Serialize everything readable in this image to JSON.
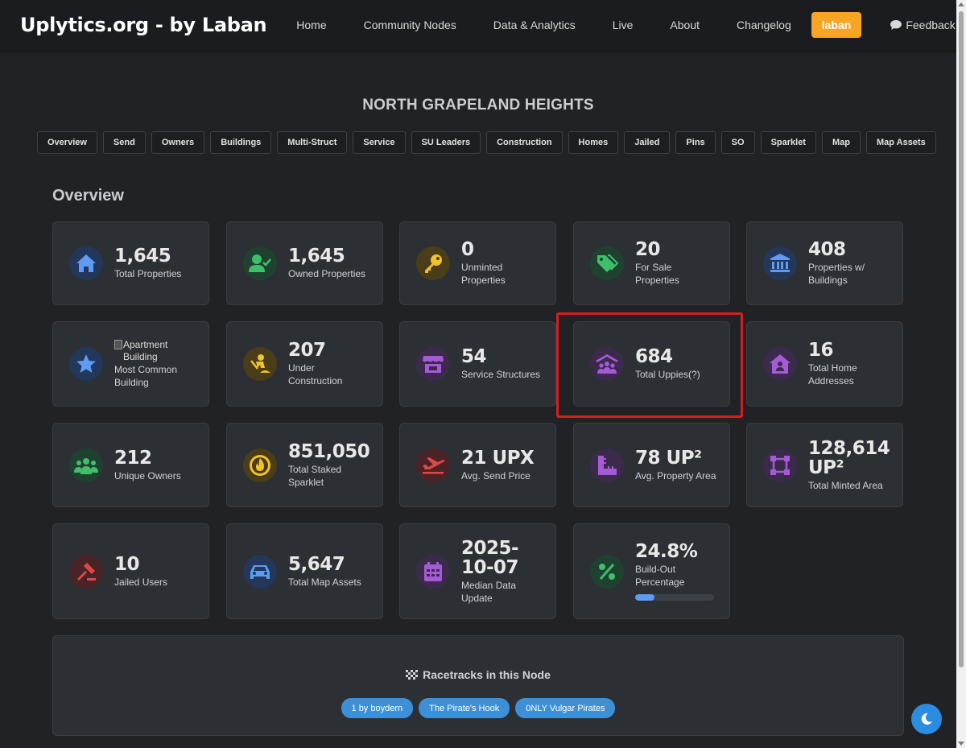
{
  "nav": {
    "brand": "Uplytics.org - by Laban",
    "links": [
      "Home",
      "Community Nodes",
      "Data & Analytics",
      "Live",
      "About",
      "Changelog"
    ],
    "user": "laban",
    "feedback": "Feedback"
  },
  "page": {
    "title": "NORTH GRAPELAND HEIGHTS",
    "tabs": [
      "Overview",
      "Send",
      "Owners",
      "Buildings",
      "Multi-Struct",
      "Service",
      "SU Leaders",
      "Construction",
      "Homes",
      "Jailed",
      "Pins",
      "SO",
      "Sparklet",
      "Map",
      "Map Assets"
    ]
  },
  "overview": {
    "title": "Overview",
    "cards": [
      {
        "value": "1,645",
        "label": "Total Properties",
        "icon": "house-icon"
      },
      {
        "value": "1,645",
        "label": "Owned Properties",
        "icon": "user-check-icon"
      },
      {
        "value": "0",
        "label": "Unminted Properties",
        "icon": "key-icon"
      },
      {
        "value": "20",
        "label": "For Sale Properties",
        "icon": "tags-icon"
      },
      {
        "value": "408",
        "label": "Properties w/ Buildings",
        "icon": "landmark-icon"
      },
      {
        "value": "",
        "alt": "Apartment Building",
        "label": "Most Common Building",
        "icon": "star-icon"
      },
      {
        "value": "207",
        "label": "Under Construction",
        "icon": "person-digging-icon"
      },
      {
        "value": "54",
        "label": "Service Structures",
        "icon": "store-icon"
      },
      {
        "value": "684",
        "label": "Total Uppies(?)",
        "icon": "people-roof-icon"
      },
      {
        "value": "16",
        "label": "Total Home Addresses",
        "icon": "house-user-icon"
      },
      {
        "value": "212",
        "label": "Unique Owners",
        "icon": "users-icon"
      },
      {
        "value": "851,050",
        "label": "Total Staked Sparklet",
        "icon": "fire-coin-icon"
      },
      {
        "value": "21 UPX",
        "label": "Avg. Send Price",
        "icon": "plane-departure-icon"
      },
      {
        "value": "78 UP²",
        "label": "Avg. Property Area",
        "icon": "ruler-combined-icon"
      },
      {
        "value": "128,614 UP²",
        "label": "Total Minted Area",
        "icon": "vector-square-icon"
      },
      {
        "value": "10",
        "label": "Jailed Users",
        "icon": "gavel-icon"
      },
      {
        "value": "5,647",
        "label": "Total Map Assets",
        "icon": "car-icon"
      },
      {
        "value": "2025-10-07",
        "label": "Median Data Update",
        "icon": "calendar-icon"
      },
      {
        "value": "24.8%",
        "label": "Build-Out Percentage",
        "icon": "percent-icon",
        "progress": 0.248
      }
    ]
  },
  "racetracks": {
    "title": "Racetracks in this Node",
    "tracks": [
      "1 by boydern",
      "The Pirate's Hook",
      "0NLY Vulgar Pirates"
    ]
  },
  "colors": {
    "blue": "#5d9cf2",
    "green": "#3fbf6a",
    "yellow": "#f2c12e",
    "purple": "#a55bd6",
    "red": "#e04848",
    "highlight": "#d61e1e",
    "accent": "#f5a623"
  }
}
